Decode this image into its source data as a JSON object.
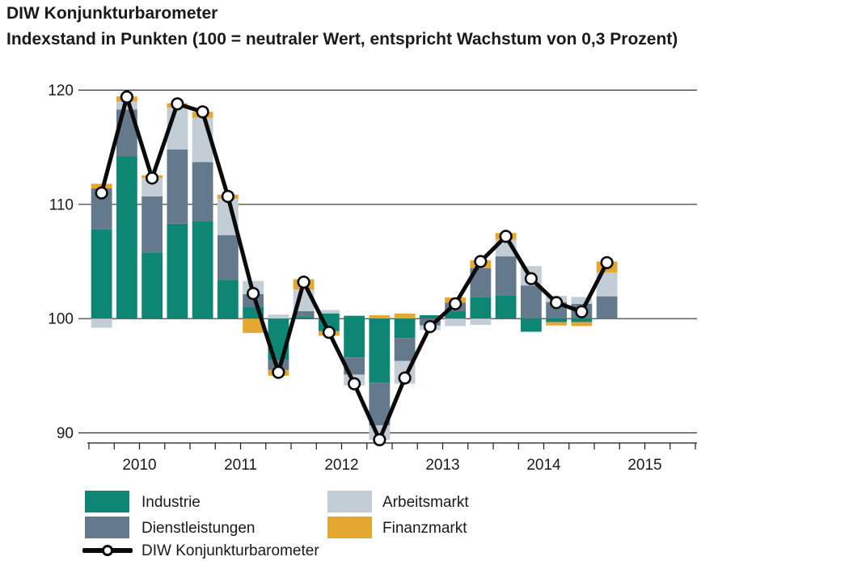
{
  "page": {
    "title": "DIW Konjunkturbarometer",
    "subtitle": "Indexstand in Punkten (100 = neutraler Wert, entspricht Wachstum von 0,3 Prozent)"
  },
  "colors": {
    "industrie": "#0E8674",
    "dienstleistungen": "#64798B",
    "arbeitsmarkt": "#C3CDD5",
    "finanzmarkt": "#E4A731",
    "line": "#0B0B0B",
    "grid": "#2F2F2F",
    "text": "#1A1A1A"
  },
  "legend": {
    "items": [
      {
        "key": "industrie",
        "label": "Industrie"
      },
      {
        "key": "dienstleistungen",
        "label": "Dienstleistungen"
      },
      {
        "key": "arbeitsmarkt",
        "label": "Arbeitsmarkt"
      },
      {
        "key": "finanzmarkt",
        "label": "Finanzmarkt"
      }
    ],
    "line_label": "DIW Konjunkturbarometer"
  },
  "chart_data": {
    "type": "bar",
    "subtype": "stacked-contribution-bars-with-line",
    "title": "DIW Konjunkturbarometer",
    "ylabel": "Indexstand in Punkten",
    "xlabel": "",
    "grid": "horizontal-on",
    "legend_position": "bottom",
    "y_axis": {
      "ticks": [
        90,
        100,
        110,
        120
      ],
      "range": [
        88.5,
        121.5
      ],
      "baseline": 100
    },
    "x_axis": {
      "year_labels": [
        "2010",
        "2011",
        "2012",
        "2013",
        "2014",
        "2015"
      ],
      "quarters_per_year": 4,
      "first_bar": "2010-Q1",
      "last_bar": "2015-Q1"
    },
    "quarters": [
      "2010-Q1",
      "2010-Q2",
      "2010-Q3",
      "2010-Q4",
      "2011-Q1",
      "2011-Q2",
      "2011-Q3",
      "2011-Q4",
      "2012-Q1",
      "2012-Q2",
      "2012-Q3",
      "2012-Q4",
      "2013-Q1",
      "2013-Q2",
      "2013-Q3",
      "2013-Q4",
      "2014-Q1",
      "2014-Q2",
      "2014-Q3",
      "2014-Q4",
      "2015-Q1"
    ],
    "line_series": {
      "name": "DIW Konjunkturbarometer",
      "values": [
        111.0,
        119.4,
        112.3,
        118.8,
        118.1,
        110.7,
        102.2,
        95.3,
        103.2,
        98.8,
        94.3,
        89.4,
        94.8,
        99.3,
        101.3,
        105.0,
        107.2,
        103.5,
        101.4,
        100.6,
        104.9
      ]
    },
    "bar_components": [
      "Industrie",
      "Dienstleistungen",
      "Arbeitsmarkt",
      "Finanzmarkt"
    ],
    "bars": [
      {
        "q": "2010-Q1",
        "segments": [
          {
            "c": "industrie",
            "from": 100,
            "to": 107.8
          },
          {
            "c": "dienstleistungen",
            "from": 107.8,
            "to": 111.4
          },
          {
            "c": "finanzmarkt",
            "from": 111.4,
            "to": 111.8
          },
          {
            "c": "arbeitsmarkt",
            "from": 100,
            "to": 99.2
          }
        ]
      },
      {
        "q": "2010-Q2",
        "segments": [
          {
            "c": "industrie",
            "from": 100,
            "to": 114.2
          },
          {
            "c": "dienstleistungen",
            "from": 114.2,
            "to": 118.3
          },
          {
            "c": "arbeitsmarkt",
            "from": 118.3,
            "to": 119.0
          },
          {
            "c": "finanzmarkt",
            "from": 119.0,
            "to": 119.45
          }
        ]
      },
      {
        "q": "2010-Q3",
        "segments": [
          {
            "c": "industrie",
            "from": 100,
            "to": 105.8
          },
          {
            "c": "dienstleistungen",
            "from": 105.8,
            "to": 110.7
          },
          {
            "c": "arbeitsmarkt",
            "from": 110.7,
            "to": 112.3
          },
          {
            "c": "finanzmarkt",
            "from": 112.3,
            "to": 112.55
          }
        ]
      },
      {
        "q": "2010-Q4",
        "segments": [
          {
            "c": "industrie",
            "from": 100,
            "to": 108.3
          },
          {
            "c": "dienstleistungen",
            "from": 108.3,
            "to": 114.8
          },
          {
            "c": "arbeitsmarkt",
            "from": 114.8,
            "to": 118.45
          },
          {
            "c": "finanzmarkt",
            "from": 118.45,
            "to": 118.85
          }
        ]
      },
      {
        "q": "2011-Q1",
        "segments": [
          {
            "c": "industrie",
            "from": 100,
            "to": 108.5
          },
          {
            "c": "dienstleistungen",
            "from": 108.5,
            "to": 113.7
          },
          {
            "c": "arbeitsmarkt",
            "from": 113.7,
            "to": 117.6
          },
          {
            "c": "finanzmarkt",
            "from": 117.6,
            "to": 118.1
          }
        ]
      },
      {
        "q": "2011-Q2",
        "segments": [
          {
            "c": "industrie",
            "from": 100,
            "to": 103.4
          },
          {
            "c": "dienstleistungen",
            "from": 103.4,
            "to": 107.3
          },
          {
            "c": "arbeitsmarkt",
            "from": 107.3,
            "to": 110.5
          },
          {
            "c": "finanzmarkt",
            "from": 110.5,
            "to": 110.85
          }
        ]
      },
      {
        "q": "2011-Q3",
        "segments": [
          {
            "c": "industrie",
            "from": 100,
            "to": 101.0
          },
          {
            "c": "dienstleistungen",
            "from": 101.0,
            "to": 102.15
          },
          {
            "c": "arbeitsmarkt",
            "from": 102.15,
            "to": 103.3
          },
          {
            "c": "finanzmarkt",
            "from": 100,
            "to": 98.75
          }
        ]
      },
      {
        "q": "2011-Q4",
        "segments": [
          {
            "c": "arbeitsmarkt",
            "from": 100,
            "to": 100.35
          },
          {
            "c": "industrie",
            "from": 100,
            "to": 96.4
          },
          {
            "c": "dienstleistungen",
            "from": 96.4,
            "to": 95.5
          },
          {
            "c": "finanzmarkt",
            "from": 95.5,
            "to": 95.0
          }
        ]
      },
      {
        "q": "2012-Q1",
        "segments": [
          {
            "c": "industrie",
            "from": 100,
            "to": 100.15
          },
          {
            "c": "dienstleistungen",
            "from": 100.15,
            "to": 100.65
          },
          {
            "c": "arbeitsmarkt",
            "from": 100.65,
            "to": 102.55
          },
          {
            "c": "finanzmarkt",
            "from": 102.55,
            "to": 103.45
          }
        ]
      },
      {
        "q": "2012-Q2",
        "segments": [
          {
            "c": "arbeitsmarkt",
            "from": 100.45,
            "to": 100.75
          },
          {
            "c": "industrie",
            "from": 100.45,
            "to": 98.9
          },
          {
            "c": "finanzmarkt",
            "from": 98.9,
            "to": 98.5
          }
        ]
      },
      {
        "q": "2012-Q3",
        "segments": [
          {
            "c": "industrie",
            "from": 100.25,
            "to": 96.6
          },
          {
            "c": "dienstleistungen",
            "from": 96.6,
            "to": 95.1
          },
          {
            "c": "arbeitsmarkt",
            "from": 95.1,
            "to": 94.15
          }
        ]
      },
      {
        "q": "2012-Q4",
        "segments": [
          {
            "c": "finanzmarkt",
            "from": 100,
            "to": 100.3
          },
          {
            "c": "industrie",
            "from": 100,
            "to": 94.4
          },
          {
            "c": "dienstleistungen",
            "from": 94.4,
            "to": 90.65
          },
          {
            "c": "arbeitsmarkt",
            "from": 90.65,
            "to": 89.4
          }
        ]
      },
      {
        "q": "2013-Q1",
        "segments": [
          {
            "c": "finanzmarkt",
            "from": 100,
            "to": 100.45
          },
          {
            "c": "industrie",
            "from": 100,
            "to": 98.3
          },
          {
            "c": "dienstleistungen",
            "from": 98.3,
            "to": 96.3
          },
          {
            "c": "arbeitsmarkt",
            "from": 96.3,
            "to": 94.3
          }
        ]
      },
      {
        "q": "2013-Q2",
        "segments": [
          {
            "c": "industrie",
            "from": 100,
            "to": 100.3
          },
          {
            "c": "dienstleistungen",
            "from": 100,
            "to": 99.4
          },
          {
            "c": "arbeitsmarkt",
            "from": 99.4,
            "to": 99.0
          }
        ]
      },
      {
        "q": "2013-Q3",
        "segments": [
          {
            "c": "industrie",
            "from": 100,
            "to": 100.65
          },
          {
            "c": "dienstleistungen",
            "from": 100.65,
            "to": 101.4
          },
          {
            "c": "finanzmarkt",
            "from": 101.4,
            "to": 101.85
          },
          {
            "c": "arbeitsmarkt",
            "from": 100,
            "to": 99.35
          }
        ]
      },
      {
        "q": "2013-Q4",
        "segments": [
          {
            "c": "industrie",
            "from": 100,
            "to": 101.9
          },
          {
            "c": "dienstleistungen",
            "from": 101.9,
            "to": 104.4
          },
          {
            "c": "finanzmarkt",
            "from": 104.4,
            "to": 105.1
          },
          {
            "c": "arbeitsmarkt",
            "from": 100,
            "to": 99.45
          }
        ]
      },
      {
        "q": "2014-Q1",
        "segments": [
          {
            "c": "industrie",
            "from": 100,
            "to": 102.05
          },
          {
            "c": "dienstleistungen",
            "from": 102.05,
            "to": 105.45
          },
          {
            "c": "arbeitsmarkt",
            "from": 105.45,
            "to": 106.9
          },
          {
            "c": "finanzmarkt",
            "from": 106.9,
            "to": 107.5
          }
        ]
      },
      {
        "q": "2014-Q2",
        "segments": [
          {
            "c": "dienstleistungen",
            "from": 100,
            "to": 102.9
          },
          {
            "c": "arbeitsmarkt",
            "from": 102.9,
            "to": 104.6
          },
          {
            "c": "industrie",
            "from": 100,
            "to": 98.85
          }
        ]
      },
      {
        "q": "2014-Q3",
        "segments": [
          {
            "c": "dienstleistungen",
            "from": 100,
            "to": 101.45
          },
          {
            "c": "arbeitsmarkt",
            "from": 101.45,
            "to": 102.0
          },
          {
            "c": "industrie",
            "from": 100,
            "to": 99.7
          },
          {
            "c": "finanzmarkt",
            "from": 99.7,
            "to": 99.4
          }
        ]
      },
      {
        "q": "2014-Q4",
        "segments": [
          {
            "c": "dienstleistungen",
            "from": 100,
            "to": 101.3
          },
          {
            "c": "arbeitsmarkt",
            "from": 101.3,
            "to": 101.9
          },
          {
            "c": "industrie",
            "from": 100,
            "to": 99.7
          },
          {
            "c": "finanzmarkt",
            "from": 99.7,
            "to": 99.35
          }
        ]
      },
      {
        "q": "2015-Q1",
        "segments": [
          {
            "c": "dienstleistungen",
            "from": 100,
            "to": 101.95
          },
          {
            "c": "arbeitsmarkt",
            "from": 101.95,
            "to": 104.05
          },
          {
            "c": "finanzmarkt",
            "from": 104.05,
            "to": 105.0
          }
        ]
      }
    ]
  }
}
